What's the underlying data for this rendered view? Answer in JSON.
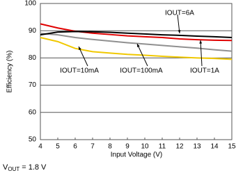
{
  "chart_data": {
    "type": "line",
    "xlabel": "Input Voltage (V)",
    "ylabel": "Efficiency (%)",
    "x": [
      4,
      5,
      6,
      7,
      8,
      9,
      10,
      11,
      12,
      13,
      14,
      15
    ],
    "xlim": [
      4,
      15
    ],
    "xticks": [
      4,
      5,
      6,
      7,
      8,
      9,
      10,
      11,
      12,
      13,
      14,
      15
    ],
    "ylim": [
      50,
      100
    ],
    "yticks": [
      50,
      60,
      70,
      80,
      90,
      100
    ],
    "grid": true,
    "series": [
      {
        "name": "IOUT=6A",
        "color": "#000000",
        "values": [
          88.5,
          89.5,
          89.7,
          89.6,
          89.4,
          89.1,
          88.8,
          88.5,
          88.3,
          88,
          87.8,
          87.5
        ]
      },
      {
        "name": "IOUT=1A",
        "color": "#e00000",
        "values": [
          92.5,
          91,
          89.8,
          89.1,
          88.6,
          88.1,
          87.8,
          87.5,
          87,
          86.7,
          86.5,
          86.4
        ]
      },
      {
        "name": "IOUT=100mA",
        "color": "#909090",
        "values": [
          89,
          88.5,
          87.5,
          86.8,
          86.2,
          85.6,
          85.1,
          84.6,
          84.1,
          83.6,
          83,
          82.5
        ]
      },
      {
        "name": "IOUT=10mA",
        "color": "#f0c800",
        "values": [
          87.5,
          86,
          83.5,
          82.3,
          81.8,
          81.3,
          81,
          80.6,
          80.3,
          80,
          79.8,
          79.5
        ]
      }
    ],
    "note": {
      "symbol": "V",
      "subscript": "OUT",
      "text": "= 1.8 V"
    }
  }
}
